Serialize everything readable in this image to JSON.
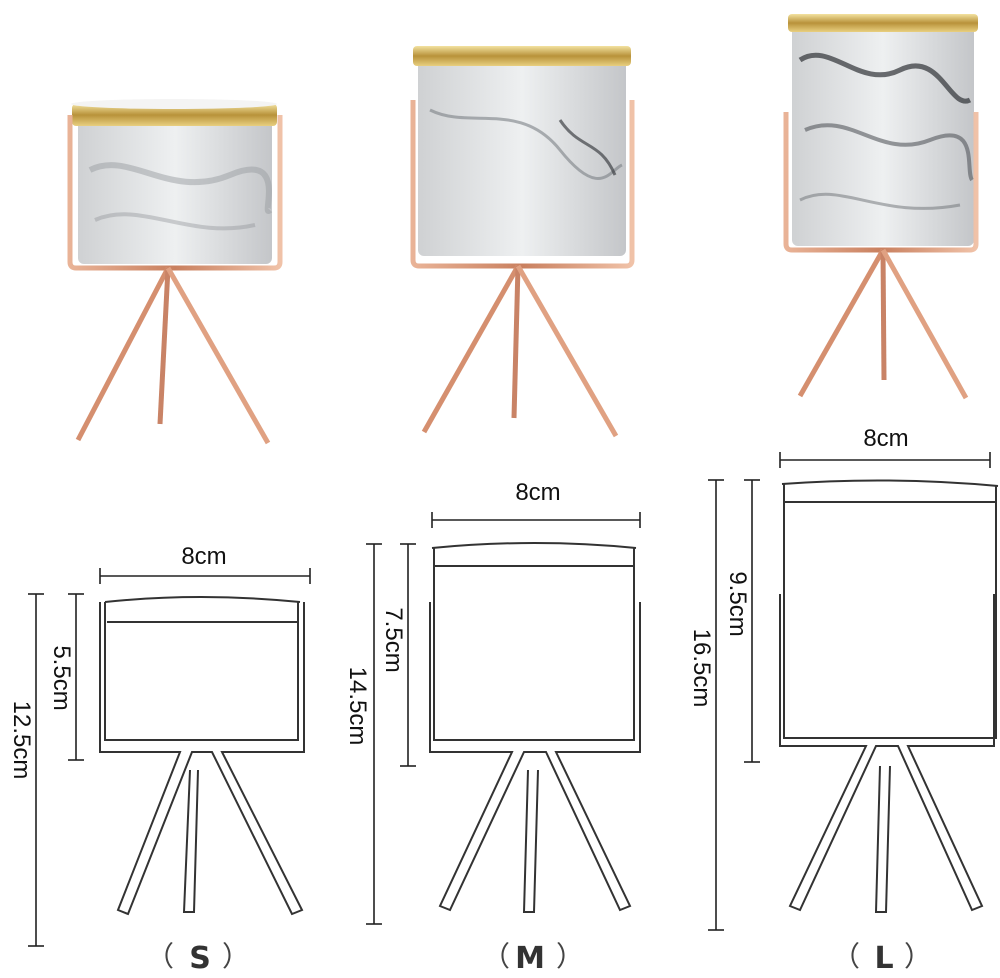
{
  "colors": {
    "rose_gold": "#d99a7c",
    "rose_gold_dark": "#b87358",
    "gold_rim": "#c9a646",
    "marble": "#e4e5e6",
    "marble_vein": "#6b6e73",
    "outline": "#333333"
  },
  "products": {
    "small": {
      "size_label": "S",
      "width_label": "8cm",
      "pot_height_label": "5.5cm",
      "total_height_label": "12.5cm"
    },
    "medium": {
      "size_label": "M",
      "width_label": "8cm",
      "pot_height_label": "7.5cm",
      "total_height_label": "14.5cm"
    },
    "large": {
      "size_label": "L",
      "width_label": "8cm",
      "pot_height_label": "9.5cm",
      "total_height_label": "16.5cm"
    }
  }
}
